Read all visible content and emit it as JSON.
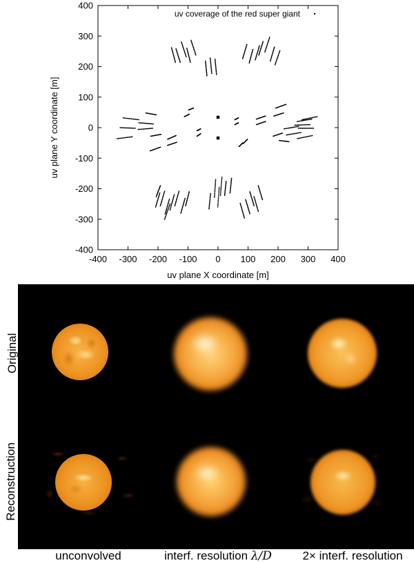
{
  "chart_data": {
    "type": "scatter",
    "title": "",
    "legend": {
      "entries": [
        "uv coverage of the red super giant"
      ],
      "placement": "top-right"
    },
    "xlabel": "uv plane X coordinate [m]",
    "ylabel": "uv plane Y coordinate [m]",
    "xlim": [
      -400,
      400
    ],
    "ylim": [
      -400,
      400
    ],
    "xticks": [
      -400,
      -300,
      -200,
      -100,
      0,
      100,
      200,
      300,
      400
    ],
    "yticks": [
      -400,
      -300,
      -200,
      -100,
      0,
      100,
      200,
      300,
      400
    ],
    "grid": false,
    "series": [
      {
        "name": "uv coverage of the red super giant",
        "tracks": [
          {
            "x0": -155,
            "y0": 262,
            "x1": -142,
            "y1": 214
          },
          {
            "x0": -140,
            "y0": 258,
            "x1": -126,
            "y1": 214
          },
          {
            "x0": -122,
            "y0": 280,
            "x1": -106,
            "y1": 232
          },
          {
            "x0": -104,
            "y0": 260,
            "x1": -92,
            "y1": 214
          },
          {
            "x0": -90,
            "y0": 286,
            "x1": -74,
            "y1": 238
          },
          {
            "x0": -42,
            "y0": 218,
            "x1": -37,
            "y1": 170
          },
          {
            "x0": -26,
            "y0": 228,
            "x1": -21,
            "y1": 178
          },
          {
            "x0": -10,
            "y0": 224,
            "x1": -5,
            "y1": 174
          },
          {
            "x0": 96,
            "y0": 272,
            "x1": 82,
            "y1": 226
          },
          {
            "x0": 116,
            "y0": 256,
            "x1": 104,
            "y1": 212
          },
          {
            "x0": 138,
            "y0": 268,
            "x1": 124,
            "y1": 222
          },
          {
            "x0": 150,
            "y0": 282,
            "x1": 136,
            "y1": 238
          },
          {
            "x0": 172,
            "y0": 296,
            "x1": 156,
            "y1": 248
          },
          {
            "x0": 188,
            "y0": 264,
            "x1": 174,
            "y1": 218
          },
          {
            "x0": 206,
            "y0": 252,
            "x1": 190,
            "y1": 206
          },
          {
            "x0": -316,
            "y0": 32,
            "x1": -264,
            "y1": 26
          },
          {
            "x0": -326,
            "y0": 0,
            "x1": -276,
            "y1": -2
          },
          {
            "x0": -336,
            "y0": -36,
            "x1": -286,
            "y1": -30
          },
          {
            "x0": -264,
            "y0": 16,
            "x1": -216,
            "y1": 12
          },
          {
            "x0": -266,
            "y0": -6,
            "x1": -218,
            "y1": -2
          },
          {
            "x0": -240,
            "y0": 48,
            "x1": -206,
            "y1": 42
          },
          {
            "x0": -224,
            "y0": -28,
            "x1": -190,
            "y1": -22
          },
          {
            "x0": -226,
            "y0": -76,
            "x1": -192,
            "y1": -64
          },
          {
            "x0": -168,
            "y0": -38,
            "x1": -140,
            "y1": -26
          },
          {
            "x0": -168,
            "y0": -58,
            "x1": -138,
            "y1": -48
          },
          {
            "x0": -112,
            "y0": 36,
            "x1": -96,
            "y1": 44
          },
          {
            "x0": -98,
            "y0": 58,
            "x1": -82,
            "y1": 64
          },
          {
            "x0": -70,
            "y0": -28,
            "x1": -58,
            "y1": -20
          },
          {
            "x0": -70,
            "y0": -10,
            "x1": -58,
            "y1": -4
          },
          {
            "x0": 56,
            "y0": 10,
            "x1": 68,
            "y1": 16
          },
          {
            "x0": 56,
            "y0": 26,
            "x1": 68,
            "y1": 32
          },
          {
            "x0": 70,
            "y0": -62,
            "x1": 82,
            "y1": -50
          },
          {
            "x0": 84,
            "y0": -52,
            "x1": 98,
            "y1": -38
          },
          {
            "x0": 128,
            "y0": 10,
            "x1": 158,
            "y1": 20
          },
          {
            "x0": 128,
            "y0": 28,
            "x1": 158,
            "y1": 38
          },
          {
            "x0": 186,
            "y0": 38,
            "x1": 218,
            "y1": 48
          },
          {
            "x0": 192,
            "y0": 64,
            "x1": 226,
            "y1": 76
          },
          {
            "x0": 184,
            "y0": -28,
            "x1": 214,
            "y1": -18
          },
          {
            "x0": 204,
            "y0": -42,
            "x1": 236,
            "y1": -46
          },
          {
            "x0": 220,
            "y0": -4,
            "x1": 268,
            "y1": 4
          },
          {
            "x0": 228,
            "y0": -24,
            "x1": 276,
            "y1": -16
          },
          {
            "x0": 264,
            "y0": 20,
            "x1": 312,
            "y1": 28
          },
          {
            "x0": 256,
            "y0": 8,
            "x1": 306,
            "y1": 10
          },
          {
            "x0": 264,
            "y0": -36,
            "x1": 314,
            "y1": -26
          },
          {
            "x0": 268,
            "y0": -2,
            "x1": 318,
            "y1": -2
          },
          {
            "x0": 280,
            "y0": 26,
            "x1": 330,
            "y1": 36
          },
          {
            "x0": -206,
            "y0": -226,
            "x1": -192,
            "y1": -190
          },
          {
            "x0": -208,
            "y0": -260,
            "x1": -194,
            "y1": -214
          },
          {
            "x0": -192,
            "y0": -256,
            "x1": -178,
            "y1": -208
          },
          {
            "x0": -176,
            "y0": -282,
            "x1": -162,
            "y1": -234
          },
          {
            "x0": -178,
            "y0": -300,
            "x1": -160,
            "y1": -250
          },
          {
            "x0": -160,
            "y0": -270,
            "x1": -146,
            "y1": -220
          },
          {
            "x0": -144,
            "y0": -256,
            "x1": -130,
            "y1": -208
          },
          {
            "x0": -124,
            "y0": -280,
            "x1": -110,
            "y1": -232
          },
          {
            "x0": -108,
            "y0": -256,
            "x1": -96,
            "y1": -210
          },
          {
            "x0": -30,
            "y0": -266,
            "x1": -25,
            "y1": -216
          },
          {
            "x0": -12,
            "y0": -228,
            "x1": -8,
            "y1": -170
          },
          {
            "x0": -1,
            "y0": -260,
            "x1": 4,
            "y1": -196
          },
          {
            "x0": 8,
            "y0": -222,
            "x1": 13,
            "y1": -162
          },
          {
            "x0": 22,
            "y0": -222,
            "x1": 27,
            "y1": -176
          },
          {
            "x0": 40,
            "y0": -214,
            "x1": 45,
            "y1": -166
          },
          {
            "x0": 74,
            "y0": -248,
            "x1": 88,
            "y1": -296
          },
          {
            "x0": 92,
            "y0": -236,
            "x1": 106,
            "y1": -282
          },
          {
            "x0": 106,
            "y0": -210,
            "x1": 120,
            "y1": -256
          },
          {
            "x0": 120,
            "y0": -226,
            "x1": 134,
            "y1": -274
          },
          {
            "x0": 134,
            "y0": -190,
            "x1": 148,
            "y1": -236
          }
        ],
        "clusters": [
          {
            "x": 0,
            "y": 34
          },
          {
            "x": 0,
            "y": -34
          }
        ]
      }
    ]
  },
  "images": {
    "row_labels": [
      "Original",
      "Reconstruction"
    ],
    "col_labels": [
      "unconvolved",
      "interf. resolution",
      "2× interf. resolution"
    ],
    "col_label_resolution_symbol": "λ/D"
  }
}
